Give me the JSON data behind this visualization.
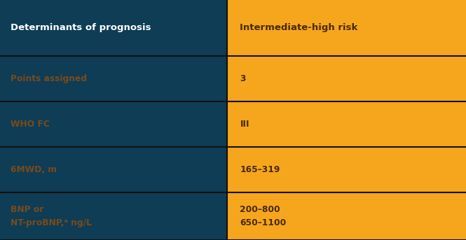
{
  "col1_header": "Determinants of prognosis",
  "col2_header": "Intermediate-high risk",
  "rows": [
    {
      "left": "Points assigned",
      "right": "3"
    },
    {
      "left": "WHO FC",
      "right": "III"
    },
    {
      "left": "6MWD, m",
      "right": "165–319"
    },
    {
      "left": "BNP or\nNT-proBNP,ᵃ ng/L",
      "right": "200–800\n650–1100"
    }
  ],
  "header_bg_left": "#0e3d55",
  "header_bg_right": "#f5a61d",
  "row_bg_left": "#0e3d55",
  "row_bg_right": "#f5a61d",
  "header_text_color_left": "#ffffff",
  "header_text_color_right": "#4a2a00",
  "row_text_color_left": "#7a4a1a",
  "row_text_color_right": "#4a2a00",
  "line_color": "#111111",
  "col_split": 0.487,
  "fig_width": 6.65,
  "fig_height": 3.43,
  "dpi": 100
}
